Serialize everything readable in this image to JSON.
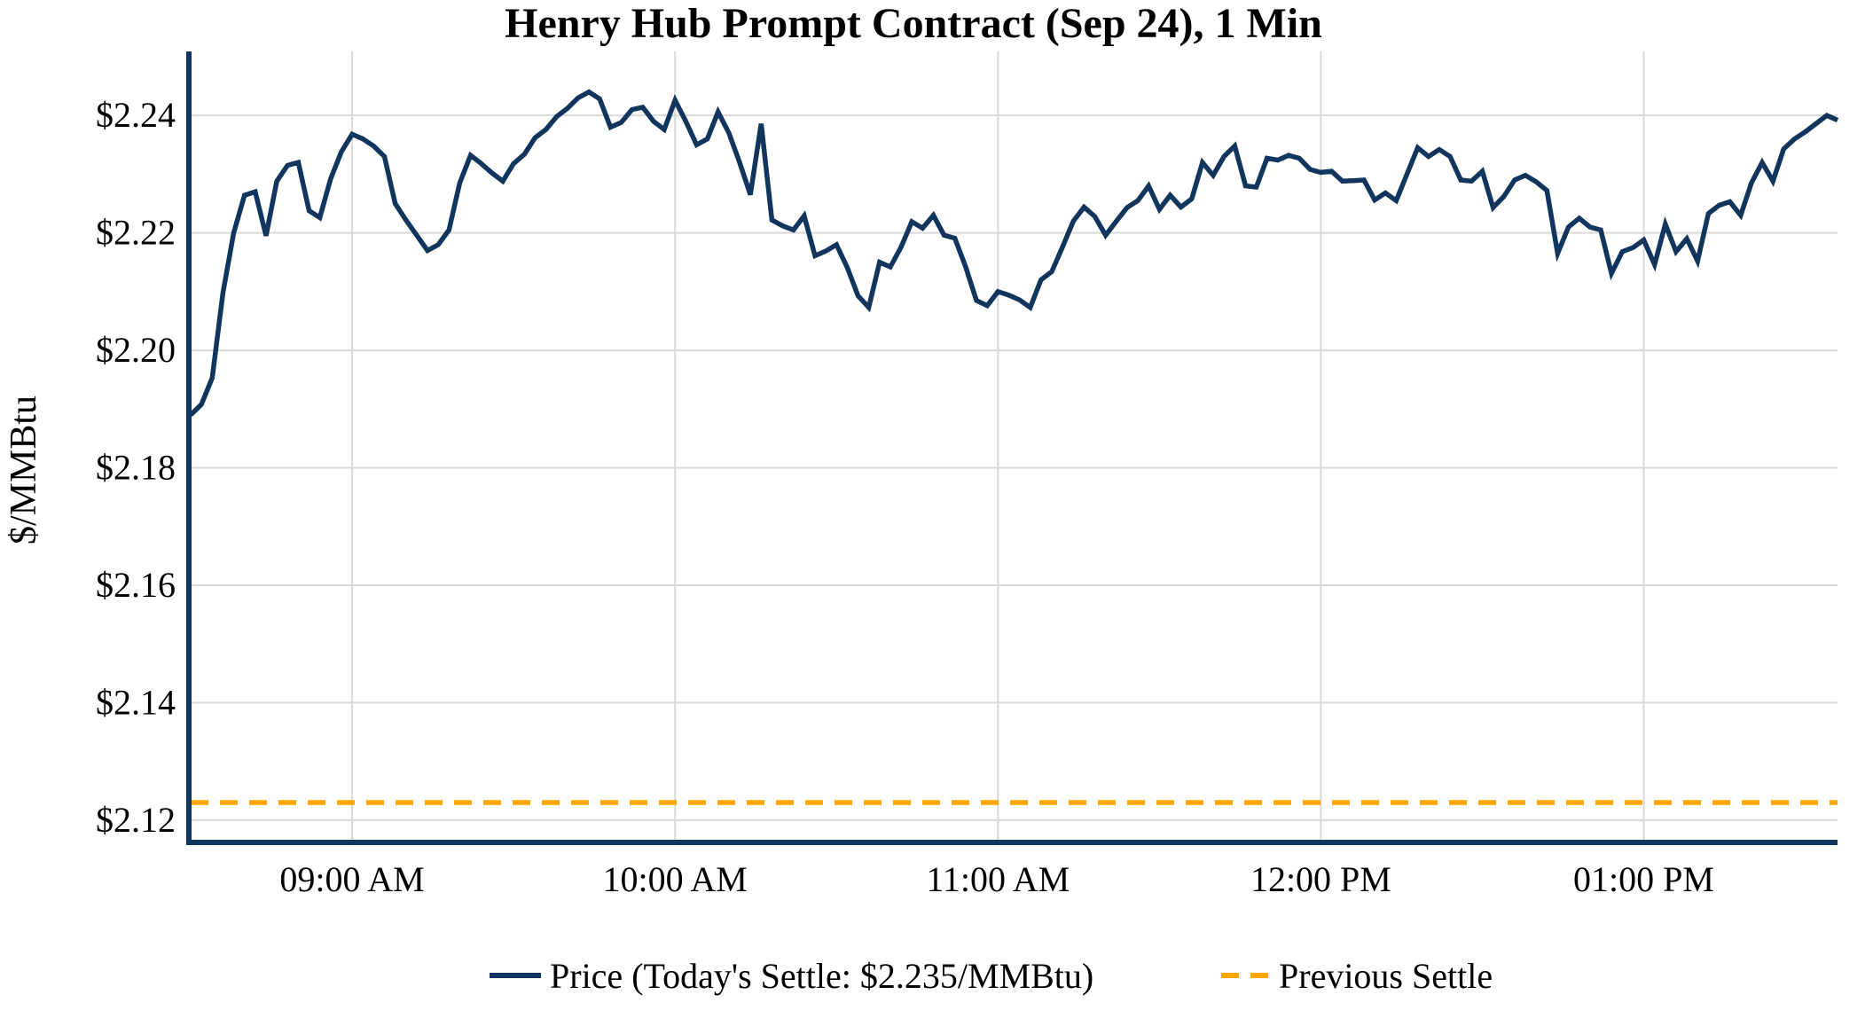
{
  "chart": {
    "title": "Henry Hub Prompt Contract (Sep 24), 1 Min",
    "ylabel": "$/MMBtu",
    "legend": {
      "price_label": "Price (Today's Settle: $2.235/MMBtu)",
      "prev_settle_label": "Previous Settle"
    },
    "colors": {
      "price_line": "#12355e",
      "prev_settle_line": "#ffa500",
      "grid": "#d9d9d9",
      "spine": "#12355e",
      "text": "#000000",
      "background": "#ffffff"
    }
  },
  "chart_data": {
    "type": "line",
    "title": "Henry Hub Prompt Contract (Sep 24), 1 Min",
    "xlabel": "",
    "ylabel": "$/MMBtu",
    "grid": true,
    "legend_position": "bottom-center",
    "todays_settle": 2.235,
    "previous_settle": 2.123,
    "x_axis": {
      "start_time": "08:30 AM",
      "end_time": "01:36 PM",
      "step_minutes": 2,
      "total_minutes": 306,
      "tick_minutes": [
        30,
        90,
        150,
        210,
        270
      ],
      "tick_labels": [
        "09:00 AM",
        "10:00 AM",
        "11:00 AM",
        "12:00 PM",
        "01:00 PM"
      ]
    },
    "y_axis": {
      "ylim": [
        2.1162,
        2.2509
      ],
      "tick_values": [
        2.24,
        2.22,
        2.2,
        2.18,
        2.16,
        2.14,
        2.12
      ],
      "tick_labels": [
        "$2.24",
        "$2.22",
        "$2.20",
        "$2.18",
        "$2.16",
        "$2.14",
        "$2.12"
      ]
    },
    "series": [
      {
        "name": "Price (Today's Settle: $2.235/MMBtu)",
        "style": "solid",
        "color": "#12355e",
        "values": [
          2.189,
          2.1908,
          2.1953,
          2.2098,
          2.22,
          2.2264,
          2.227,
          2.2195,
          2.2288,
          2.2315,
          2.232,
          2.2238,
          2.2226,
          2.2292,
          2.2338,
          2.2368,
          2.236,
          2.2348,
          2.233,
          2.225,
          2.2222,
          2.2196,
          2.217,
          2.218,
          2.2205,
          2.2285,
          2.2332,
          2.2318,
          2.2302,
          2.2288,
          2.2318,
          2.2334,
          2.2362,
          2.2376,
          2.2398,
          2.2412,
          2.243,
          2.244,
          2.2428,
          2.238,
          2.2388,
          2.241,
          2.2414,
          2.239,
          2.2376,
          2.2426,
          2.239,
          2.235,
          2.236,
          2.2406,
          2.237,
          2.232,
          2.2265,
          2.2386,
          2.2222,
          2.2212,
          2.2205,
          2.2229,
          2.2161,
          2.2169,
          2.218,
          2.2141,
          2.2093,
          2.2073,
          2.215,
          2.2142,
          2.2176,
          2.2219,
          2.2208,
          2.223,
          2.2196,
          2.2191,
          2.2142,
          2.2085,
          2.2076,
          2.21,
          2.2094,
          2.2086,
          2.2073,
          2.212,
          2.2134,
          2.2176,
          2.222,
          2.2244,
          2.2228,
          2.2196,
          2.222,
          2.2243,
          2.2255,
          2.228,
          2.224,
          2.2264,
          2.2244,
          2.2258,
          2.232,
          2.2298,
          2.233,
          2.2348,
          2.228,
          2.2278,
          2.2327,
          2.2324,
          2.2332,
          2.2327,
          2.2308,
          2.2303,
          2.2305,
          2.2288,
          2.2289,
          2.229,
          2.2256,
          2.2268,
          2.2255,
          2.23,
          2.2345,
          2.233,
          2.2342,
          2.233,
          2.229,
          2.2288,
          2.2305,
          2.2243,
          2.2262,
          2.229,
          2.2298,
          2.2287,
          2.2272,
          2.2165,
          2.221,
          2.2225,
          2.221,
          2.2205,
          2.2131,
          2.2168,
          2.2175,
          2.2188,
          2.2146,
          2.2215,
          2.2168,
          2.219,
          2.2152,
          2.2233,
          2.2247,
          2.2253,
          2.223,
          2.2285,
          2.232,
          2.2288,
          2.2343,
          2.236,
          2.2372,
          2.2386,
          2.24,
          2.2392
        ]
      },
      {
        "name": "Previous Settle",
        "style": "dashed",
        "color": "#ffa500",
        "value": 2.123
      }
    ]
  }
}
